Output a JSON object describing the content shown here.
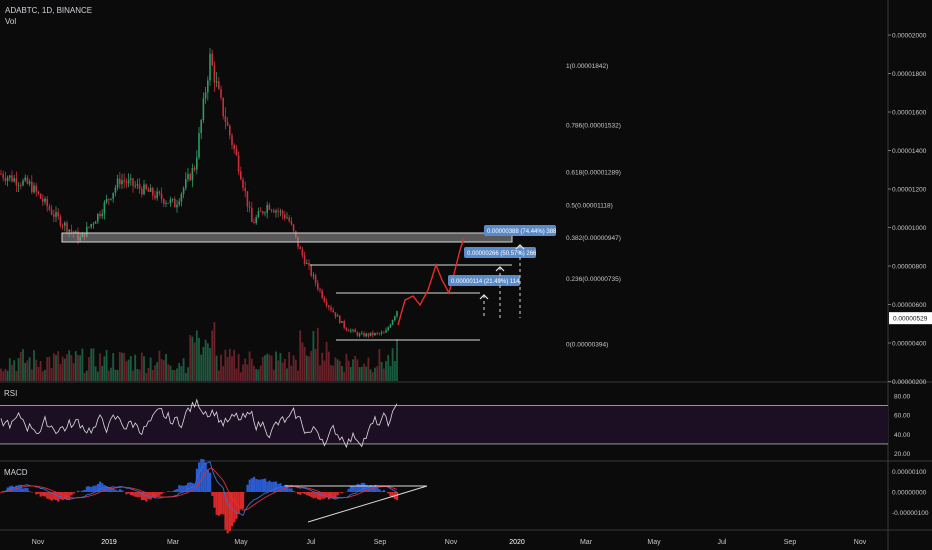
{
  "header": {
    "symbol": "ADABTC, 1D, BINANCE",
    "volume_label": "Vol"
  },
  "colors": {
    "background": "#0b0b0b",
    "candle_up": "#2e9b67",
    "candle_down": "#cc2e3a",
    "projection": "#e52b2b",
    "tag_fill": "#5b8ac9",
    "rsi_band": "#1c0f24",
    "macd_line": "#3a6fd8",
    "signal_line": "#e0303a",
    "hist_pos": "#2a5bd0",
    "hist_neg": "#d82a2a"
  },
  "panes": {
    "rsi_label": "RSI",
    "macd_label": "MACD"
  },
  "chart_data": {
    "type": "candlestick",
    "price_axis_labels": [
      "0.00002000",
      "0.00001800",
      "0.00001600",
      "0.00001400",
      "0.00001200",
      "0.00001000",
      "0.00000800",
      "0.00000600",
      "0.00000400",
      "0.00000200"
    ],
    "price_axis_values": [
      2e-05,
      1.8e-05,
      1.6e-05,
      1.4e-05,
      1.2e-05,
      1e-05,
      8e-06,
      6e-06,
      4e-06,
      2e-06
    ],
    "current_price": "0.00000529",
    "time_axis": [
      "Nov",
      "2019",
      "Mar",
      "May",
      "Jul",
      "Sep",
      "Nov",
      "2020",
      "Mar",
      "May",
      "Jul",
      "Sep",
      "Nov"
    ],
    "fib_levels": [
      {
        "label": "1(0.00001842)",
        "value": 1.842e-05
      },
      {
        "label": "0.786(0.00001532)",
        "value": 1.532e-05
      },
      {
        "label": "0.618(0.00001289)",
        "value": 1.289e-05
      },
      {
        "label": "0.5(0.00001118)",
        "value": 1.118e-05
      },
      {
        "label": "0.382(0.00000947)",
        "value": 9.47e-06
      },
      {
        "label": "0.236(0.00000735)",
        "value": 7.35e-06
      },
      {
        "label": "0(0.00000394)",
        "value": 3.94e-06
      }
    ],
    "measure_tags": [
      {
        "label": "0.00000114 (21.49%) 114"
      },
      {
        "label": "0.00000266 (50.57%) 266"
      },
      {
        "label": "0.00000388 (74.44%) 388"
      }
    ],
    "rsi": {
      "axis_labels": [
        "80.00",
        "60.00",
        "40.00",
        "20.00"
      ],
      "axis_values": [
        80,
        60,
        40,
        20
      ],
      "upper_band": 70,
      "lower_band": 30
    },
    "macd": {
      "axis_labels": [
        "0.00000100",
        "0.00000000",
        "-0.00000100"
      ],
      "axis_values": [
        1e-06,
        0,
        -1e-06
      ]
    }
  }
}
